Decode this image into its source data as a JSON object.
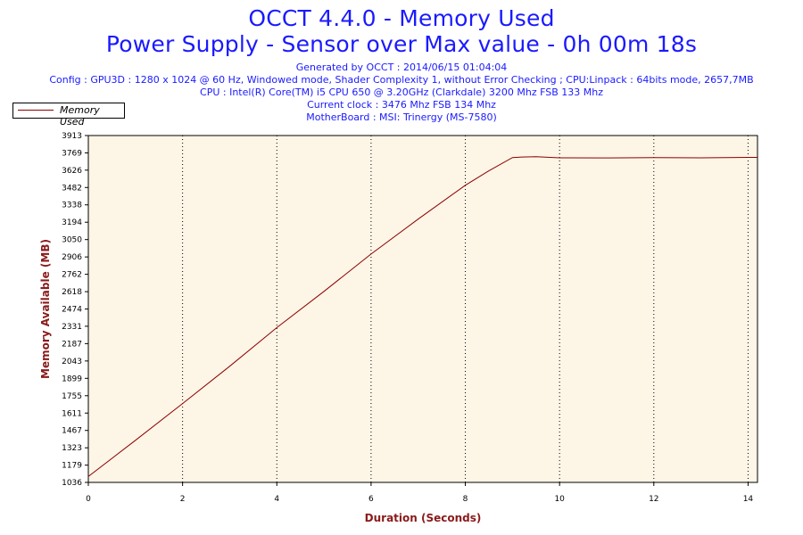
{
  "header": {
    "title_line1": "OCCT 4.4.0 - Memory Used",
    "title_line2": "Power Supply - Sensor over Max value - 0h 00m 18s",
    "info_lines": [
      "Generated by OCCT : 2014/06/15 01:04:04",
      "Config : GPU3D : 1280 x 1024 @ 60 Hz, Windowed mode, Shader Complexity 1, without Error Checking ; CPU:Linpack : 64bits mode, 2657,7MB",
      "CPU : Intel(R) Core(TM) i5 CPU 650 @ 3.20GHz (Clarkdale) 3200 Mhz FSB 133 Mhz",
      "Current clock : 3476 Mhz FSB 134 Mhz",
      "MotherBoard : MSI: Trinergy (MS-7580)"
    ]
  },
  "colors": {
    "title": "#1a1aff",
    "line": "#8b0000",
    "plot_background": "#fdf5e6",
    "axis_title": "#8b1a1a"
  },
  "chart_data": {
    "type": "line",
    "title": "OCCT 4.4.0 - Memory Used",
    "xlabel": "Duration (Seconds)",
    "ylabel": "Memory Available (MB)",
    "xlim": [
      0,
      14.2
    ],
    "ylim": [
      1036,
      3913
    ],
    "x_ticks": [
      0,
      2,
      4,
      6,
      8,
      10,
      12,
      14
    ],
    "y_ticks": [
      1036,
      1179,
      1323,
      1467,
      1611,
      1755,
      1899,
      2043,
      2187,
      2331,
      2474,
      2618,
      2762,
      2906,
      3050,
      3194,
      3338,
      3482,
      3626,
      3769,
      3913
    ],
    "grid": "vertical dotted",
    "legend": "top-left",
    "series": [
      {
        "name": "Memory Used",
        "x": [
          0,
          1,
          2,
          3,
          4,
          5,
          6,
          7,
          8,
          8.5,
          9,
          9.2,
          9.5,
          10,
          11,
          12,
          13,
          14,
          14.2
        ],
        "y": [
          1085,
          1385,
          1690,
          2000,
          2320,
          2620,
          2930,
          3220,
          3500,
          3620,
          3730,
          3735,
          3737,
          3728,
          3727,
          3730,
          3728,
          3732,
          3732
        ]
      }
    ]
  }
}
